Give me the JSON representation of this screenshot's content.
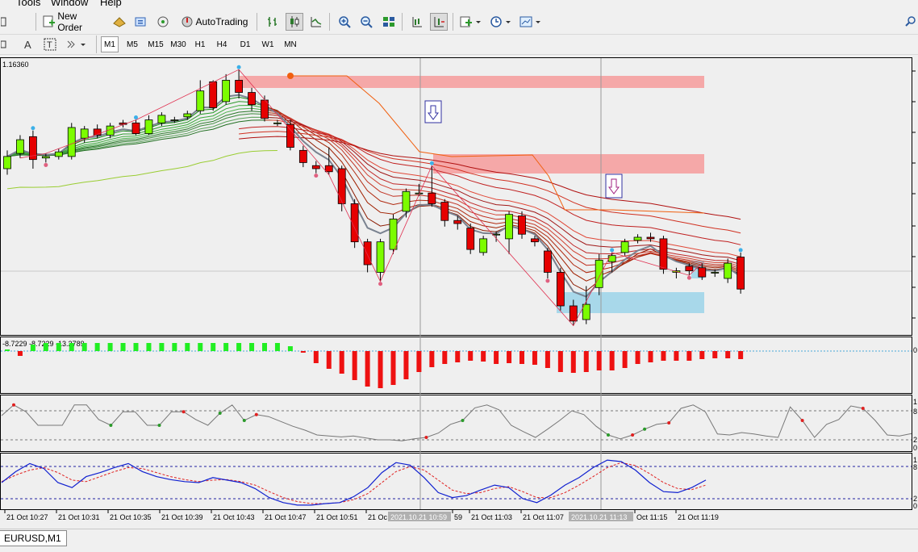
{
  "menu": {
    "tools": "Tools",
    "window": "Window",
    "help": "Help"
  },
  "toolbar": {
    "new_order": "New Order",
    "autotrading": "AutoTrading",
    "timeframes": [
      "M1",
      "M5",
      "M15",
      "M30",
      "H1",
      "H4",
      "D1",
      "W1",
      "MN"
    ],
    "active_timeframe": "M1"
  },
  "chart": {
    "price_label": "1.16360",
    "macd_label": "-8.7229 -8.7229 -13.2789",
    "time_labels": [
      "21 Oct 10:27",
      "21 Oct 10:31",
      "21 Oct 10:35",
      "21 Oct 10:39",
      "21 Oct 10:43",
      "21 Oct 10:47",
      "21 Oct 10:51",
      "21 Oc",
      "59",
      "21 Oct 11:03",
      "21 Oct 11:07",
      "Oct 11:15",
      "21 Oct 11:19"
    ],
    "crosshair_label_1": "2021.10.21 10:59",
    "crosshair_label_2": "2021.10.21 11:13",
    "right_scale_macd": "0",
    "right_scale_osc": [
      "1",
      "8",
      "2",
      "0"
    ],
    "right_scale_stoch": [
      "1",
      "8",
      "2",
      "0"
    ],
    "colors": {
      "bull": "#7cfc00",
      "bear": "#e60000",
      "zone_red": "#f5a0a0",
      "zone_blue": "#a8d8ea",
      "ma_gray": "#7a8290"
    }
  },
  "candles": [
    {
      "o": 1.16268,
      "c": 1.16276,
      "h": 1.1628,
      "l": 1.16264
    },
    {
      "o": 1.16278,
      "c": 1.16287,
      "h": 1.1629,
      "l": 1.16275
    },
    {
      "o": 1.16289,
      "c": 1.16274,
      "h": 1.16293,
      "l": 1.16268
    },
    {
      "o": 1.16275,
      "c": 1.16276,
      "h": 1.16278,
      "l": 1.16272
    },
    {
      "o": 1.16276,
      "c": 1.16279,
      "h": 1.16281,
      "l": 1.16274
    },
    {
      "o": 1.16276,
      "c": 1.16295,
      "h": 1.16298,
      "l": 1.16274
    },
    {
      "o": 1.16288,
      "c": 1.16294,
      "h": 1.16296,
      "l": 1.16285
    },
    {
      "o": 1.16294,
      "c": 1.1629,
      "h": 1.16297,
      "l": 1.16288
    },
    {
      "o": 1.1629,
      "c": 1.16296,
      "h": 1.16298,
      "l": 1.16288
    },
    {
      "o": 1.16298,
      "c": 1.16297,
      "h": 1.163,
      "l": 1.16295
    },
    {
      "o": 1.16298,
      "c": 1.16291,
      "h": 1.163,
      "l": 1.1629
    },
    {
      "o": 1.16291,
      "c": 1.163,
      "h": 1.16303,
      "l": 1.1629
    },
    {
      "o": 1.16298,
      "c": 1.16303,
      "h": 1.16305,
      "l": 1.16296
    },
    {
      "o": 1.163,
      "c": 1.163,
      "h": 1.16302,
      "l": 1.16298
    },
    {
      "o": 1.16302,
      "c": 1.16304,
      "h": 1.16306,
      "l": 1.163
    },
    {
      "o": 1.16306,
      "c": 1.16319,
      "h": 1.16326,
      "l": 1.16304
    },
    {
      "o": 1.16325,
      "c": 1.16308,
      "h": 1.16326,
      "l": 1.16306
    },
    {
      "o": 1.16312,
      "c": 1.16326,
      "h": 1.1633,
      "l": 1.1631
    },
    {
      "o": 1.16326,
      "c": 1.16318,
      "h": 1.16333,
      "l": 1.16314
    },
    {
      "o": 1.16318,
      "c": 1.1631,
      "h": 1.16321,
      "l": 1.16306
    },
    {
      "o": 1.16313,
      "c": 1.16301,
      "h": 1.16316,
      "l": 1.16299
    },
    {
      "o": 1.16298,
      "c": 1.16298,
      "h": 1.163,
      "l": 1.16296
    },
    {
      "o": 1.16297,
      "c": 1.16282,
      "h": 1.163,
      "l": 1.1628
    },
    {
      "o": 1.1628,
      "c": 1.16272,
      "h": 1.16283,
      "l": 1.16269
    },
    {
      "o": 1.1627,
      "c": 1.16268,
      "h": 1.16273,
      "l": 1.16265
    },
    {
      "o": 1.1627,
      "c": 1.16266,
      "h": 1.16282,
      "l": 1.16264
    },
    {
      "o": 1.16268,
      "c": 1.16245,
      "h": 1.1627,
      "l": 1.1624
    },
    {
      "o": 1.16245,
      "c": 1.1622,
      "h": 1.16248,
      "l": 1.16216
    },
    {
      "o": 1.1622,
      "c": 1.16205,
      "h": 1.16222,
      "l": 1.162
    },
    {
      "o": 1.162,
      "c": 1.1622,
      "h": 1.16222,
      "l": 1.16194
    },
    {
      "o": 1.16215,
      "c": 1.16235,
      "h": 1.16238,
      "l": 1.16212
    },
    {
      "o": 1.1624,
      "c": 1.16253,
      "h": 1.16255,
      "l": 1.16236
    },
    {
      "o": 1.16252,
      "c": 1.16252,
      "h": 1.16258,
      "l": 1.1625
    },
    {
      "o": 1.16252,
      "c": 1.16245,
      "h": 1.1627,
      "l": 1.16243
    },
    {
      "o": 1.16246,
      "c": 1.16234,
      "h": 1.16248,
      "l": 1.1623
    },
    {
      "o": 1.16234,
      "c": 1.16232,
      "h": 1.16237,
      "l": 1.16228
    },
    {
      "o": 1.16229,
      "c": 1.16215,
      "h": 1.16232,
      "l": 1.16212
    },
    {
      "o": 1.16213,
      "c": 1.16222,
      "h": 1.16224,
      "l": 1.16211
    },
    {
      "o": 1.16225,
      "c": 1.16225,
      "h": 1.16227,
      "l": 1.1622
    },
    {
      "o": 1.16222,
      "c": 1.16238,
      "h": 1.1624,
      "l": 1.16212
    },
    {
      "o": 1.16237,
      "c": 1.16225,
      "h": 1.1624,
      "l": 1.16222
    },
    {
      "o": 1.16222,
      "c": 1.1622,
      "h": 1.16224,
      "l": 1.16217
    },
    {
      "o": 1.16214,
      "c": 1.162,
      "h": 1.16216,
      "l": 1.16196
    },
    {
      "o": 1.162,
      "c": 1.16178,
      "h": 1.16203,
      "l": 1.16175
    },
    {
      "o": 1.16178,
      "c": 1.16168,
      "h": 1.16182,
      "l": 1.16165
    },
    {
      "o": 1.16169,
      "c": 1.16179,
      "h": 1.16191,
      "l": 1.16166
    },
    {
      "o": 1.1619,
      "c": 1.16208,
      "h": 1.16212,
      "l": 1.16185
    },
    {
      "o": 1.16207,
      "c": 1.16211,
      "h": 1.16213,
      "l": 1.162
    },
    {
      "o": 1.16213,
      "c": 1.1622,
      "h": 1.16222,
      "l": 1.16211
    },
    {
      "o": 1.16221,
      "c": 1.16223,
      "h": 1.16225,
      "l": 1.16219
    },
    {
      "o": 1.16223,
      "c": 1.16222,
      "h": 1.16226,
      "l": 1.1622
    },
    {
      "o": 1.16222,
      "c": 1.16202,
      "h": 1.16224,
      "l": 1.16199
    },
    {
      "o": 1.162,
      "c": 1.16201,
      "h": 1.16203,
      "l": 1.16196
    },
    {
      "o": 1.16204,
      "c": 1.16201,
      "h": 1.16206,
      "l": 1.16198
    },
    {
      "o": 1.16203,
      "c": 1.16197,
      "h": 1.16206,
      "l": 1.16195
    },
    {
      "o": 1.162,
      "c": 1.162,
      "h": 1.16202,
      "l": 1.16197
    },
    {
      "o": 1.16196,
      "c": 1.16206,
      "h": 1.16209,
      "l": 1.16193
    },
    {
      "o": 1.1621,
      "c": 1.16189,
      "h": 1.16213,
      "l": 1.16186
    }
  ],
  "macd_hist": [
    0.2,
    -0.6,
    0.8,
    1,
    1,
    1,
    1,
    1,
    1,
    1,
    1,
    1,
    1,
    1,
    1,
    1,
    1,
    1,
    1,
    1,
    1,
    1,
    0.6,
    -0.2,
    -1.5,
    -2.2,
    -2.8,
    -3.6,
    -4.4,
    -4.6,
    -4.2,
    -3.5,
    -2.6,
    -2,
    -1.6,
    -1.4,
    -1.2,
    -1.3,
    -1.6,
    -1.5,
    -1.6,
    -1.7,
    -2.1,
    -2.6,
    -2.7,
    -2.6,
    -2.4,
    -2.4,
    -2.1,
    -1.6,
    -1.4,
    -1.2,
    -1.2,
    -1.2,
    -1,
    -0.9,
    -0.9,
    -1
  ],
  "osc_line": [
    70,
    92,
    78,
    50,
    50,
    50,
    92,
    92,
    62,
    50,
    78,
    78,
    50,
    50,
    78,
    78,
    62,
    50,
    75,
    92,
    60,
    72,
    68,
    58,
    48,
    40,
    30,
    28,
    26,
    28,
    24,
    20,
    20,
    18,
    22,
    25,
    34,
    52,
    60,
    86,
    92,
    82,
    50,
    37,
    25,
    42,
    60,
    80,
    72,
    48,
    30,
    22,
    30,
    42,
    52,
    55,
    85,
    92,
    78,
    32,
    30,
    35,
    32,
    28,
    25,
    88,
    60,
    25,
    52,
    62,
    90,
    85,
    60,
    30,
    28,
    33
  ],
  "stoch_line": [
    50,
    72,
    88,
    78,
    50,
    40,
    62,
    70,
    80,
    88,
    72,
    62,
    56,
    52,
    50,
    60,
    55,
    50,
    38,
    20,
    10,
    5,
    5,
    8,
    10,
    22,
    40,
    70,
    90,
    85,
    60,
    30,
    20,
    24,
    35,
    45,
    40,
    18,
    10,
    25,
    45,
    60,
    80,
    95,
    92,
    75,
    50,
    32,
    30,
    40,
    55
  ],
  "stoch_signal": [
    52,
    65,
    75,
    80,
    70,
    55,
    52,
    62,
    72,
    80,
    78,
    70,
    62,
    56,
    52,
    55,
    56,
    52,
    45,
    32,
    20,
    12,
    8,
    8,
    10,
    16,
    28,
    50,
    72,
    82,
    75,
    55,
    35,
    28,
    30,
    38,
    42,
    32,
    20,
    20,
    30,
    45,
    62,
    80,
    90,
    84,
    68,
    50,
    38,
    36,
    45
  ]
}
